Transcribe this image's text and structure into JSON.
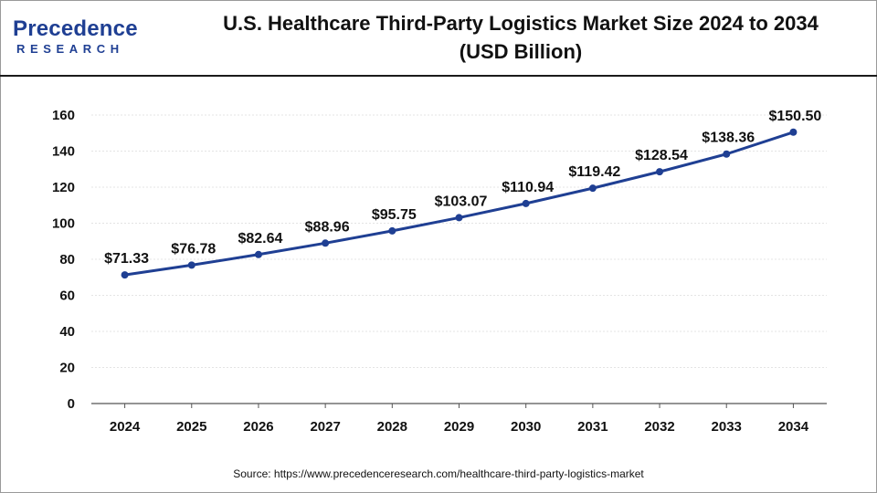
{
  "brand": {
    "logo_main": "Precedence",
    "logo_sub": "RESEARCH",
    "color": "#1f3f93"
  },
  "header": {
    "title_line1": "U.S. Healthcare Third-Party Logistics Market Size 2024 to 2034",
    "title_line2": "(USD Billion)"
  },
  "footer": {
    "source": "Source: https://www.precedenceresearch.com/healthcare-third-party-logistics-market"
  },
  "chart_data": {
    "type": "line",
    "title": "U.S. Healthcare Third-Party Logistics Market Size 2024 to 2034 (USD Billion)",
    "xlabel": "",
    "ylabel": "",
    "categories": [
      "2024",
      "2025",
      "2026",
      "2027",
      "2028",
      "2029",
      "2030",
      "2031",
      "2032",
      "2033",
      "2034"
    ],
    "series": [
      {
        "values": [
          71.33,
          76.78,
          82.64,
          88.96,
          95.75,
          103.07,
          110.94,
          119.42,
          128.54,
          138.36,
          150.5
        ],
        "labels": [
          "$71.33",
          "$76.78",
          "$82.64",
          "$88.96",
          "$95.75",
          "$103.07",
          "$110.94",
          "$119.42",
          "$128.54",
          "$138.36",
          "$150.50"
        ],
        "color": "#1f3f93"
      }
    ],
    "ylim": [
      0,
      160
    ],
    "yticks": [
      0,
      20,
      40,
      60,
      80,
      100,
      120,
      140,
      160
    ],
    "grid": true,
    "legend": "none"
  }
}
